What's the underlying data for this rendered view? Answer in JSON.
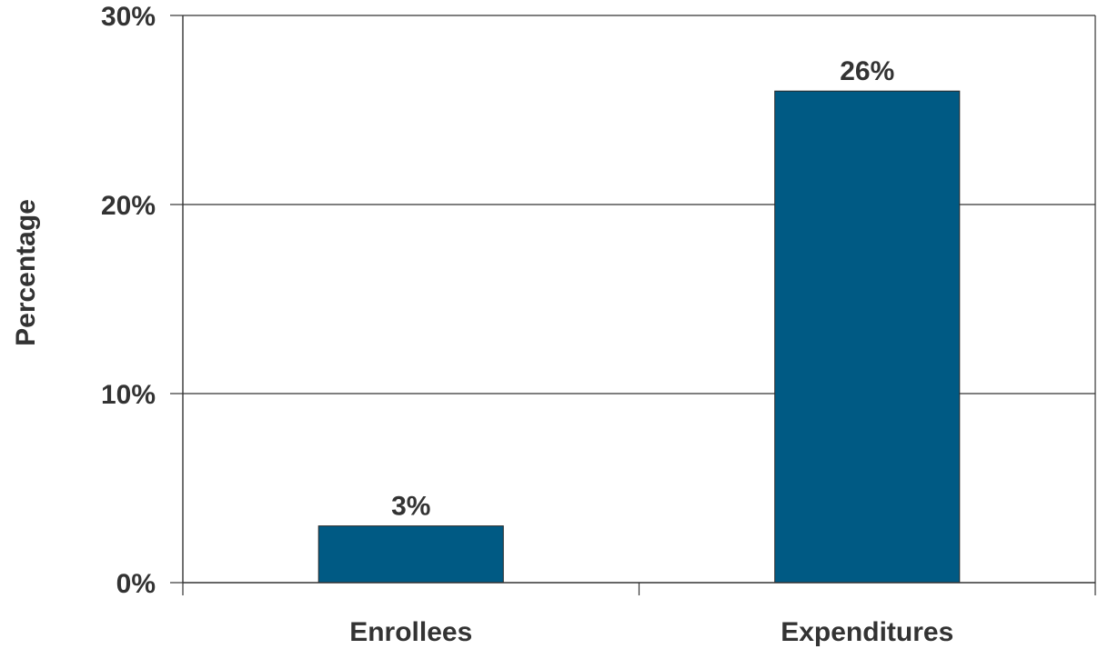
{
  "chart_data": {
    "type": "bar",
    "categories": [
      "Enrollees",
      "Expenditures"
    ],
    "values": [
      3,
      26
    ],
    "data_labels": [
      "3%",
      "26%"
    ],
    "title": "",
    "xlabel": "",
    "ylabel": "Percentage",
    "ylim": [
      0,
      30
    ],
    "yticks": [
      0,
      10,
      20,
      30
    ],
    "ytick_labels": [
      "0%",
      "10%",
      "20%",
      "30%"
    ],
    "grid": true,
    "bar_color": "#005A84",
    "legend": "none"
  }
}
